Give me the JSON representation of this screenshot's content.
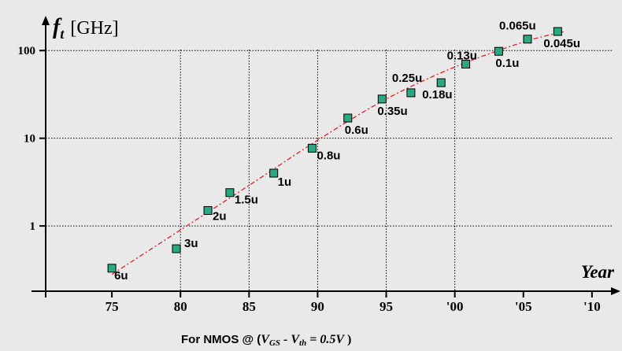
{
  "chart_data": {
    "type": "scatter",
    "title": "",
    "ylabel": {
      "symbol": "f",
      "subscript": "t",
      "unit": "[GHz]"
    },
    "xlabel": "Year",
    "footnote": {
      "prefix": "For NMOS @ (",
      "vgs": "V",
      "vgs_sub": "GS",
      "minus": " - ",
      "vth": "V",
      "vth_sub": "th",
      "cond": " = 0.5V",
      "suffix": " )"
    },
    "y_scale": "log",
    "ylim": [
      0.2,
      260
    ],
    "xlim": [
      1970.0,
      2011.5
    ],
    "grid": true,
    "x_ticks": [
      {
        "year": 1975,
        "label": "75"
      },
      {
        "year": 1980,
        "label": "80"
      },
      {
        "year": 1985,
        "label": "85"
      },
      {
        "year": 1990,
        "label": "90"
      },
      {
        "year": 1995,
        "label": "95"
      },
      {
        "year": 2000,
        "label": "'00"
      },
      {
        "year": 2005,
        "label": "'05"
      },
      {
        "year": 2010,
        "label": "'10"
      }
    ],
    "y_ticks": [
      {
        "value": 1,
        "label": "1"
      },
      {
        "value": 10,
        "label": "10"
      },
      {
        "value": 100,
        "label": "100"
      }
    ],
    "series": [
      {
        "points": [
          {
            "x": 1975.0,
            "y": 0.33,
            "label": "6u"
          },
          {
            "x": 1979.7,
            "y": 0.55,
            "label": "3u"
          },
          {
            "x": 1982.0,
            "y": 1.5,
            "label": "2u"
          },
          {
            "x": 1983.6,
            "y": 2.4,
            "label": "1.5u"
          },
          {
            "x": 1986.8,
            "y": 4.0,
            "label": "1u"
          },
          {
            "x": 1989.6,
            "y": 7.7,
            "label": "0.8u"
          },
          {
            "x": 1992.2,
            "y": 17.0,
            "label": "0.6u"
          },
          {
            "x": 1994.7,
            "y": 28.0,
            "label": "0.35u"
          },
          {
            "x": 1996.8,
            "y": 33.0,
            "label": "0.25u"
          },
          {
            "x": 1999.0,
            "y": 43.0,
            "label": "0.18u"
          },
          {
            "x": 2000.8,
            "y": 70.0,
            "label": "0.13u"
          },
          {
            "x": 2003.2,
            "y": 98.0,
            "label": "0.1u"
          },
          {
            "x": 2005.3,
            "y": 135.0,
            "label": "0.065u"
          },
          {
            "x": 2007.5,
            "y": 165.0,
            "label": "0.045u"
          }
        ]
      }
    ],
    "trend": {
      "style": "dashed",
      "color": "#dd2222",
      "points": [
        [
          1975.0,
          0.28
        ],
        [
          1980,
          0.9
        ],
        [
          1985,
          2.9
        ],
        [
          1990,
          9.5
        ],
        [
          1995,
          28
        ],
        [
          2000,
          65
        ],
        [
          2005,
          125
        ],
        [
          2008,
          165
        ]
      ]
    },
    "colors": {
      "marker_fill": "#2aa882",
      "marker_stroke": "#000000",
      "background": "#e9e9e9",
      "grid": "#000000",
      "label": "#000000"
    }
  }
}
